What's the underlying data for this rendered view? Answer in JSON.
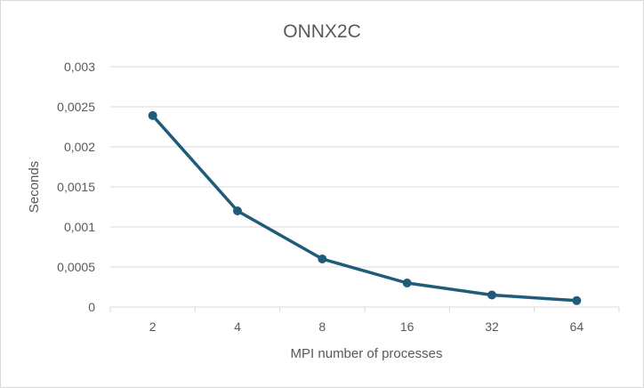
{
  "chart_data": {
    "type": "line",
    "title": "ONNX2C",
    "xlabel": "MPI number of processes",
    "ylabel": "Seconds",
    "categories": [
      "2",
      "4",
      "8",
      "16",
      "32",
      "64"
    ],
    "series": [
      {
        "values": [
          0.00239,
          0.0012,
          0.0006,
          0.0003,
          0.00015,
          8e-05
        ]
      }
    ],
    "ylim": [
      0,
      0.003
    ],
    "yticks": [
      {
        "value": 0,
        "label": "0"
      },
      {
        "value": 0.0005,
        "label": "0,0005"
      },
      {
        "value": 0.001,
        "label": "0,001"
      },
      {
        "value": 0.0015,
        "label": "0,0015"
      },
      {
        "value": 0.002,
        "label": "0,002"
      },
      {
        "value": 0.0025,
        "label": "0,0025"
      },
      {
        "value": 0.003,
        "label": "0,003"
      }
    ],
    "grid": true,
    "legend": "none",
    "colors": {
      "line": "#1f5c7a",
      "grid": "#d9d9d9",
      "text": "#595959"
    }
  }
}
